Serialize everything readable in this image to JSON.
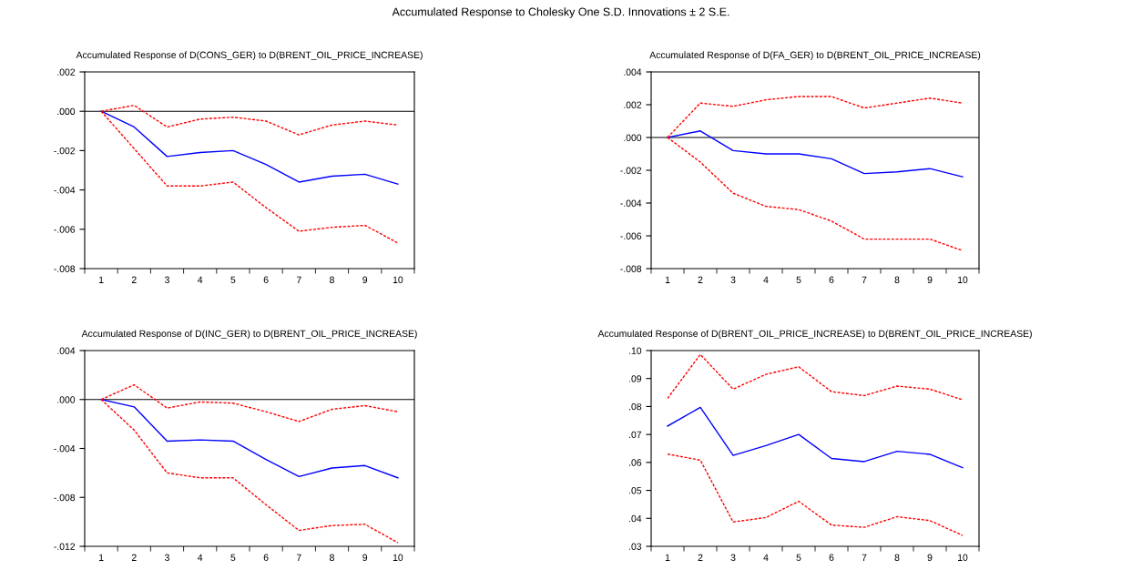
{
  "chart_data": [
    {
      "type": "line",
      "title": "Accumulated Response to Cholesky One S.D. Innovations ± 2 S.E.",
      "subtitle": "Accumulated Response of D(CONS_GER) to D(BRENT_OIL_PRICE_INCREASE)",
      "categories": [
        "1",
        "2",
        "3",
        "4",
        "5",
        "6",
        "7",
        "8",
        "9",
        "10"
      ],
      "series": [
        {
          "color": "#0000ff",
          "line_style": "solid",
          "values": [
            0,
            -0.0008,
            -0.0023,
            -0.0021,
            -0.002,
            -0.0027,
            -0.0036,
            -0.0033,
            -0.0032,
            -0.0037
          ]
        },
        {
          "color": "#ff0000",
          "line_style": "dashed",
          "values": [
            0,
            0.0003,
            -0.0008,
            -0.0004,
            -0.0003,
            -0.0005,
            -0.0012,
            -0.0007,
            -0.0005,
            -0.0007
          ]
        },
        {
          "color": "#ff0000",
          "line_style": "dashed",
          "values": [
            0,
            -0.0019,
            -0.0038,
            -0.0038,
            -0.0036,
            -0.0049,
            -0.0061,
            -0.0059,
            -0.0058,
            -0.0067
          ]
        }
      ],
      "ylim": [
        -0.008,
        0.002
      ],
      "yticks": [
        {
          "value": -0.008,
          "label": "-.008"
        },
        {
          "value": -0.006,
          "label": "-.006"
        },
        {
          "value": -0.004,
          "label": "-.004"
        },
        {
          "value": -0.002,
          "label": "-.002"
        },
        {
          "value": 0,
          "label": ".000"
        },
        {
          "value": 0.002,
          "label": ".002"
        }
      ],
      "ref_lines": [
        {
          "axis": "y",
          "value": 0,
          "color": "#000000"
        }
      ],
      "grid": false
    },
    {
      "type": "line",
      "subtitle": "Accumulated Response of D(FA_GER) to D(BRENT_OIL_PRICE_INCREASE)",
      "categories": [
        "1",
        "2",
        "3",
        "4",
        "5",
        "6",
        "7",
        "8",
        "9",
        "10"
      ],
      "series": [
        {
          "color": "#0000ff",
          "line_style": "solid",
          "values": [
            0,
            0.0004,
            -0.0008,
            -0.001,
            -0.001,
            -0.0013,
            -0.0022,
            -0.0021,
            -0.0019,
            -0.0024
          ]
        },
        {
          "color": "#ff0000",
          "line_style": "dashed",
          "values": [
            0,
            0.0021,
            0.0019,
            0.0023,
            0.0025,
            0.0025,
            0.0018,
            0.0021,
            0.0024,
            0.0021
          ]
        },
        {
          "color": "#ff0000",
          "line_style": "dashed",
          "values": [
            0,
            -0.0015,
            -0.0034,
            -0.0042,
            -0.0044,
            -0.0051,
            -0.0062,
            -0.0062,
            -0.0062,
            -0.0069
          ]
        }
      ],
      "ylim": [
        -0.008,
        0.004
      ],
      "yticks": [
        {
          "value": -0.008,
          "label": "-.008"
        },
        {
          "value": -0.006,
          "label": "-.006"
        },
        {
          "value": -0.004,
          "label": "-.004"
        },
        {
          "value": -0.002,
          "label": "-.002"
        },
        {
          "value": 0,
          "label": ".000"
        },
        {
          "value": 0.002,
          "label": ".002"
        },
        {
          "value": 0.004,
          "label": ".004"
        }
      ],
      "ref_lines": [
        {
          "axis": "y",
          "value": 0,
          "color": "#000000"
        }
      ],
      "grid": false
    },
    {
      "type": "line",
      "subtitle": "Accumulated Response of D(INC_GER) to D(BRENT_OIL_PRICE_INCREASE)",
      "categories": [
        "1",
        "2",
        "3",
        "4",
        "5",
        "6",
        "7",
        "8",
        "9",
        "10"
      ],
      "series": [
        {
          "color": "#0000ff",
          "line_style": "solid",
          "values": [
            0,
            -0.0006,
            -0.0034,
            -0.0033,
            -0.0034,
            -0.0049,
            -0.0063,
            -0.0056,
            -0.0054,
            -0.0064
          ]
        },
        {
          "color": "#ff0000",
          "line_style": "dashed",
          "values": [
            0,
            0.0012,
            -0.0007,
            -0.0002,
            -0.0003,
            -0.001,
            -0.0018,
            -0.0008,
            -0.0005,
            -0.001
          ]
        },
        {
          "color": "#ff0000",
          "line_style": "dashed",
          "values": [
            0,
            -0.0025,
            -0.006,
            -0.0064,
            -0.0064,
            -0.0086,
            -0.0107,
            -0.0103,
            -0.0102,
            -0.0117
          ]
        }
      ],
      "ylim": [
        -0.012,
        0.004
      ],
      "yticks": [
        {
          "value": -0.012,
          "label": "-.012"
        },
        {
          "value": -0.008,
          "label": "-.008"
        },
        {
          "value": -0.004,
          "label": "-.004"
        },
        {
          "value": 0,
          "label": ".000"
        },
        {
          "value": 0.004,
          "label": ".004"
        }
      ],
      "ref_lines": [
        {
          "axis": "y",
          "value": 0,
          "color": "#000000"
        }
      ],
      "grid": false
    },
    {
      "type": "line",
      "subtitle": "Accumulated Response of D(BRENT_OIL_PRICE_INCREASE) to D(BRENT_OIL_PRICE_INCREASE)",
      "categories": [
        "1",
        "2",
        "3",
        "4",
        "5",
        "6",
        "7",
        "8",
        "9",
        "10"
      ],
      "series": [
        {
          "color": "#0000ff",
          "line_style": "solid",
          "values": [
            0.073,
            0.0797,
            0.0625,
            0.066,
            0.07,
            0.0614,
            0.0603,
            0.064,
            0.0629,
            0.0581
          ]
        },
        {
          "color": "#ff0000",
          "line_style": "dashed",
          "values": [
            0.0829,
            0.0986,
            0.0862,
            0.0915,
            0.0942,
            0.0853,
            0.0839,
            0.0873,
            0.0862,
            0.0824
          ]
        },
        {
          "color": "#ff0000",
          "line_style": "dashed",
          "values": [
            0.063,
            0.0608,
            0.0387,
            0.0403,
            0.0461,
            0.0376,
            0.0368,
            0.0406,
            0.0392,
            0.0339
          ]
        }
      ],
      "ylim": [
        0.03,
        0.1
      ],
      "yticks": [
        {
          "value": 0.03,
          "label": ".03"
        },
        {
          "value": 0.04,
          "label": ".04"
        },
        {
          "value": 0.05,
          "label": ".05"
        },
        {
          "value": 0.06,
          "label": ".06"
        },
        {
          "value": 0.07,
          "label": ".07"
        },
        {
          "value": 0.08,
          "label": ".08"
        },
        {
          "value": 0.09,
          "label": ".09"
        },
        {
          "value": 0.1,
          "label": ".10"
        }
      ],
      "grid": false
    }
  ]
}
